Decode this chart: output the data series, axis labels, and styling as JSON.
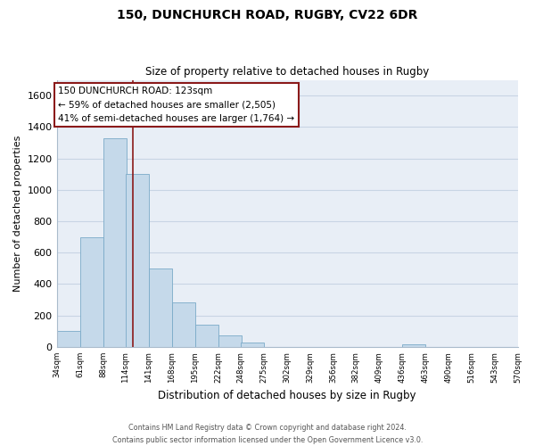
{
  "title": "150, DUNCHURCH ROAD, RUGBY, CV22 6DR",
  "subtitle": "Size of property relative to detached houses in Rugby",
  "xlabel": "Distribution of detached houses by size in Rugby",
  "ylabel": "Number of detached properties",
  "bar_color": "#c5d9ea",
  "bar_edge_color": "#7aaac8",
  "marker_color": "#8b1a1a",
  "marker_value": 123,
  "bins_left": [
    34,
    61,
    88,
    114,
    141,
    168,
    195,
    222,
    248,
    275,
    302,
    329,
    356,
    382,
    409,
    436,
    463,
    490,
    516,
    543
  ],
  "bin_width": 27,
  "bar_heights": [
    100,
    700,
    1330,
    1100,
    500,
    285,
    140,
    75,
    30,
    0,
    0,
    0,
    0,
    0,
    0,
    15,
    0,
    0,
    0,
    0
  ],
  "ylim": [
    0,
    1700
  ],
  "yticks": [
    0,
    200,
    400,
    600,
    800,
    1000,
    1200,
    1400,
    1600
  ],
  "xtick_labels": [
    "34sqm",
    "61sqm",
    "88sqm",
    "114sqm",
    "141sqm",
    "168sqm",
    "195sqm",
    "222sqm",
    "248sqm",
    "275sqm",
    "302sqm",
    "329sqm",
    "356sqm",
    "382sqm",
    "409sqm",
    "436sqm",
    "463sqm",
    "490sqm",
    "516sqm",
    "543sqm",
    "570sqm"
  ],
  "annotation_title": "150 DUNCHURCH ROAD: 123sqm",
  "annotation_line1": "← 59% of detached houses are smaller (2,505)",
  "annotation_line2": "41% of semi-detached houses are larger (1,764) →",
  "footer_line1": "Contains HM Land Registry data © Crown copyright and database right 2024.",
  "footer_line2": "Contains public sector information licensed under the Open Government Licence v3.0.",
  "grid_color": "#c8d4e4",
  "background_color": "#e8eef6"
}
